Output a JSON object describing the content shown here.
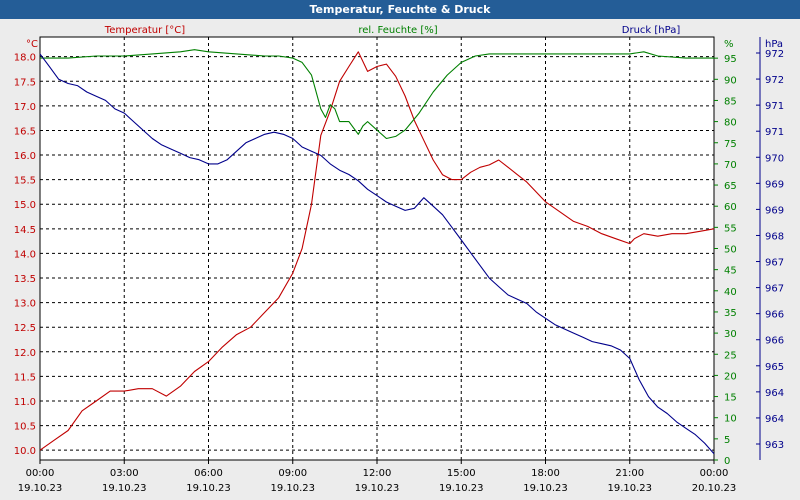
{
  "title": "Temperatur, Feuchte & Druck",
  "colors": {
    "temperature": "#c00000",
    "humidity": "#008000",
    "pressure": "#00008b",
    "title_bg": "#245d97",
    "plot_bg": "#ffffff"
  },
  "chart_data": {
    "type": "line",
    "title": "Temperatur, Feuchte & Druck",
    "grid": true,
    "x_ticks": [
      {
        "time": "00:00",
        "date": "19.10.23"
      },
      {
        "time": "03:00",
        "date": "19.10.23"
      },
      {
        "time": "06:00",
        "date": "19.10.23"
      },
      {
        "time": "09:00",
        "date": "19.10.23"
      },
      {
        "time": "12:00",
        "date": "19.10.23"
      },
      {
        "time": "15:00",
        "date": "19.10.23"
      },
      {
        "time": "18:00",
        "date": "19.10.23"
      },
      {
        "time": "21:00",
        "date": "19.10.23"
      },
      {
        "time": "00:00",
        "date": "20.10.23"
      }
    ],
    "axes": {
      "temperature": {
        "unit": "°C",
        "label": "Temperatur [°C]",
        "range": [
          9.8,
          18.4
        ],
        "ticks": [
          "10.0",
          "10.5",
          "11.0",
          "11.5",
          "12.0",
          "12.5",
          "13.0",
          "13.5",
          "14.0",
          "14.5",
          "15.0",
          "15.5",
          "16.0",
          "16.5",
          "17.0",
          "17.5",
          "18.0"
        ]
      },
      "humidity": {
        "unit": "%",
        "label": "rel. Feuchte [%]",
        "range": [
          0,
          100
        ],
        "ticks": [
          "0",
          "5",
          "10",
          "15",
          "20",
          "25",
          "30",
          "35",
          "40",
          "45",
          "50",
          "55",
          "60",
          "65",
          "70",
          "75",
          "80",
          "85",
          "90",
          "95"
        ]
      },
      "pressure": {
        "unit": "hPa",
        "label": "Druck [hPa]",
        "range": [
          962.6,
          972.6
        ],
        "ticks": [
          "963",
          "964",
          "964",
          "965",
          "966",
          "966",
          "967",
          "967",
          "968",
          "969",
          "969",
          "970",
          "971",
          "971",
          "972",
          "972"
        ]
      }
    },
    "series": [
      {
        "name": "Temperatur [°C]",
        "axis": "temperature",
        "x": [
          "00:00",
          "00:30",
          "01:00",
          "01:30",
          "02:00",
          "02:30",
          "03:00",
          "03:30",
          "04:00",
          "04:30",
          "05:00",
          "05:30",
          "06:00",
          "06:30",
          "07:00",
          "07:30",
          "08:00",
          "08:30",
          "09:00",
          "09:20",
          "09:40",
          "10:00",
          "10:20",
          "10:40",
          "11:00",
          "11:20",
          "11:40",
          "12:00",
          "12:20",
          "12:40",
          "13:00",
          "13:20",
          "13:40",
          "14:00",
          "14:20",
          "14:40",
          "15:00",
          "15:20",
          "15:40",
          "16:00",
          "16:20",
          "16:40",
          "17:00",
          "17:20",
          "17:40",
          "18:00",
          "18:30",
          "19:00",
          "19:30",
          "20:00",
          "20:30",
          "21:00",
          "21:10",
          "21:30",
          "22:00",
          "22:30",
          "23:00",
          "23:30",
          "24:00"
        ],
        "y": [
          10.0,
          10.2,
          10.4,
          10.8,
          11.0,
          11.2,
          11.2,
          11.25,
          11.25,
          11.1,
          11.3,
          11.6,
          11.8,
          12.1,
          12.35,
          12.5,
          12.8,
          13.1,
          13.6,
          14.1,
          15.0,
          16.4,
          16.9,
          17.5,
          17.8,
          18.1,
          17.7,
          17.8,
          17.85,
          17.6,
          17.2,
          16.7,
          16.3,
          15.9,
          15.6,
          15.5,
          15.5,
          15.65,
          15.75,
          15.8,
          15.9,
          15.75,
          15.6,
          15.45,
          15.25,
          15.05,
          14.85,
          14.65,
          14.55,
          14.4,
          14.3,
          14.2,
          14.3,
          14.4,
          14.35,
          14.4,
          14.4,
          14.45,
          14.5
        ]
      },
      {
        "name": "rel. Feuchte [%]",
        "axis": "humidity",
        "x": [
          "00:00",
          "01:00",
          "02:00",
          "03:00",
          "04:00",
          "05:00",
          "05:30",
          "06:00",
          "07:00",
          "08:00",
          "08:30",
          "09:00",
          "09:20",
          "09:40",
          "10:00",
          "10:10",
          "10:20",
          "10:30",
          "10:40",
          "11:00",
          "11:20",
          "11:30",
          "11:40",
          "12:00",
          "12:20",
          "12:40",
          "13:00",
          "13:30",
          "14:00",
          "14:30",
          "15:00",
          "15:30",
          "16:00",
          "16:30",
          "17:00",
          "18:00",
          "19:00",
          "20:00",
          "21:00",
          "21:30",
          "22:00",
          "23:00",
          "24:00"
        ],
        "y": [
          95,
          95,
          95.5,
          95.5,
          96,
          96.5,
          97,
          96.5,
          96,
          95.5,
          95.5,
          95,
          94,
          91,
          83,
          81,
          84,
          83,
          80,
          80,
          77,
          79,
          80,
          78,
          76,
          76.5,
          78,
          82,
          87,
          91,
          94,
          95.5,
          96,
          96,
          96,
          96,
          96,
          96,
          96,
          96.5,
          95.5,
          95,
          95
        ]
      },
      {
        "name": "Druck [hPa]",
        "axis": "pressure",
        "x": [
          "00:00",
          "00:20",
          "00:40",
          "01:00",
          "01:20",
          "01:40",
          "02:00",
          "02:20",
          "02:40",
          "03:00",
          "03:20",
          "03:40",
          "04:00",
          "04:20",
          "04:40",
          "05:00",
          "05:20",
          "05:40",
          "06:00",
          "06:20",
          "06:40",
          "07:00",
          "07:20",
          "07:40",
          "08:00",
          "08:20",
          "08:40",
          "09:00",
          "09:20",
          "09:40",
          "10:00",
          "10:20",
          "10:40",
          "11:00",
          "11:20",
          "11:40",
          "12:00",
          "12:20",
          "12:40",
          "13:00",
          "13:20",
          "13:40",
          "14:00",
          "14:20",
          "14:40",
          "15:00",
          "15:20",
          "15:40",
          "16:00",
          "16:20",
          "16:40",
          "17:00",
          "17:20",
          "17:40",
          "18:00",
          "18:20",
          "18:40",
          "19:00",
          "19:20",
          "19:40",
          "20:00",
          "20:20",
          "20:40",
          "21:00",
          "21:20",
          "21:40",
          "22:00",
          "22:20",
          "22:40",
          "23:00",
          "23:20",
          "23:40",
          "24:00"
        ],
        "y": [
          972.2,
          971.9,
          971.6,
          971.5,
          971.45,
          971.3,
          971.2,
          971.1,
          970.9,
          970.8,
          970.6,
          970.4,
          970.2,
          970.05,
          969.95,
          969.85,
          969.75,
          969.7,
          969.6,
          969.6,
          969.7,
          969.9,
          970.1,
          970.2,
          970.3,
          970.35,
          970.3,
          970.2,
          970.0,
          969.9,
          969.8,
          969.6,
          969.45,
          969.35,
          969.2,
          969.0,
          968.85,
          968.7,
          968.6,
          968.5,
          968.55,
          968.8,
          968.6,
          968.4,
          968.1,
          967.8,
          967.5,
          967.2,
          966.9,
          966.7,
          966.5,
          966.4,
          966.3,
          966.1,
          965.95,
          965.8,
          965.7,
          965.6,
          965.5,
          965.4,
          965.35,
          965.3,
          965.2,
          965.0,
          964.5,
          964.1,
          963.85,
          963.7,
          963.5,
          963.35,
          963.2,
          963.0,
          962.75
        ]
      }
    ]
  }
}
